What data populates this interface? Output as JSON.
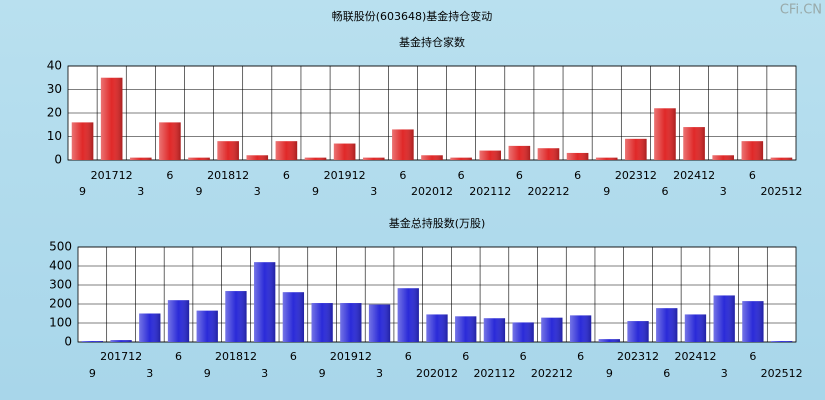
{
  "title": "畅联股份(603648)基金持仓变动",
  "watermark": "CFi.CN",
  "chart_data": [
    {
      "type": "bar",
      "title": "基金持仓家数",
      "color": "#e02828",
      "categories": [
        "9",
        "201712",
        "3",
        "6",
        "9",
        "201812",
        "3",
        "6",
        "9",
        "201912",
        "3",
        "6",
        "202012",
        "6",
        "202112",
        "6",
        "202212",
        "6",
        "9",
        "202312",
        "6",
        "202412",
        "3",
        "6",
        "202512"
      ],
      "values": [
        16,
        35,
        1,
        16,
        1,
        8,
        2,
        8,
        1,
        7,
        1,
        13,
        2,
        1,
        4,
        6,
        5,
        3,
        1,
        9,
        22,
        14,
        2,
        8,
        1
      ],
      "ylim": [
        0,
        40
      ],
      "yticks": [
        0,
        10,
        20,
        30,
        40
      ],
      "grid": true
    },
    {
      "type": "bar",
      "title": "基金总持股数(万股)",
      "color": "#2a2ad8",
      "categories": [
        "9",
        "201712",
        "3",
        "6",
        "9",
        "201812",
        "3",
        "6",
        "9",
        "201912",
        "3",
        "6",
        "202012",
        "6",
        "202112",
        "6",
        "202212",
        "6",
        "9",
        "202312",
        "6",
        "202412",
        "3",
        "6",
        "202512"
      ],
      "values": [
        5,
        10,
        150,
        220,
        165,
        268,
        420,
        262,
        205,
        205,
        197,
        283,
        145,
        135,
        125,
        103,
        128,
        140,
        15,
        110,
        178,
        145,
        245,
        215,
        5
      ],
      "ylim": [
        0,
        500
      ],
      "yticks": [
        0,
        100,
        200,
        300,
        400,
        500
      ],
      "grid": true
    }
  ]
}
